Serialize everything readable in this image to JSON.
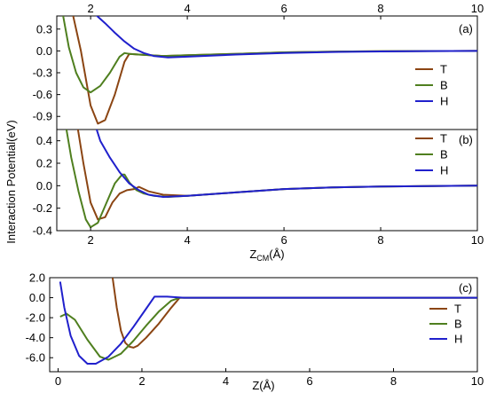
{
  "chart_data": [
    {
      "type": "line",
      "panel_label": "(a)",
      "top_ticks": [
        "2",
        "4",
        "6",
        "8",
        "10"
      ],
      "xlim": [
        1.3,
        10
      ],
      "ylim": [
        -1.08,
        0.48
      ],
      "y_ticks": [
        0.3,
        0.0,
        -0.3,
        -0.6,
        -0.9
      ],
      "y_tick_labels": [
        "0.3",
        "0.0",
        "-0.3",
        "-0.6",
        "-0.9"
      ],
      "legend": {
        "placement": "right"
      },
      "series": [
        {
          "name": "T",
          "color": "#8B4513",
          "x": [
            1.6,
            1.8,
            2.0,
            2.15,
            2.3,
            2.5,
            2.7,
            2.8,
            3.0,
            3.5,
            4.0,
            5.0,
            6.0,
            7.0,
            8.0,
            9.0,
            10.0
          ],
          "y": [
            0.6,
            0.0,
            -0.75,
            -1.0,
            -0.95,
            -0.6,
            -0.15,
            -0.04,
            -0.05,
            -0.07,
            -0.06,
            -0.04,
            -0.02,
            -0.01,
            -0.005,
            -0.002,
            0.0
          ]
        },
        {
          "name": "B",
          "color": "#4F7F1F",
          "x": [
            1.4,
            1.55,
            1.7,
            1.85,
            2.0,
            2.2,
            2.4,
            2.6,
            2.7,
            2.8,
            3.0,
            3.5,
            4.0,
            5.0,
            6.0,
            7.0,
            8.0,
            10.0
          ],
          "y": [
            0.6,
            0.05,
            -0.3,
            -0.5,
            -0.57,
            -0.48,
            -0.3,
            -0.08,
            -0.03,
            -0.04,
            -0.05,
            -0.07,
            -0.06,
            -0.04,
            -0.02,
            -0.01,
            -0.005,
            0.0
          ]
        },
        {
          "name": "H",
          "color": "#2020CC",
          "x": [
            2.1,
            2.3,
            2.5,
            2.7,
            2.9,
            3.1,
            3.3,
            3.6,
            4.0,
            5.0,
            6.0,
            7.0,
            8.0,
            9.0,
            10.0
          ],
          "y": [
            0.5,
            0.38,
            0.25,
            0.13,
            0.03,
            -0.03,
            -0.07,
            -0.09,
            -0.08,
            -0.05,
            -0.03,
            -0.015,
            -0.007,
            -0.003,
            0.0
          ]
        }
      ]
    },
    {
      "type": "line",
      "panel_label": "(b)",
      "xlim": [
        1.3,
        10
      ],
      "ylim": [
        -0.4,
        0.5
      ],
      "x_ticks": [
        "2",
        "4",
        "6",
        "8",
        "10"
      ],
      "y_ticks": [
        0.4,
        0.2,
        0.0,
        -0.2,
        -0.4
      ],
      "y_tick_labels": [
        "0.4",
        "0.2",
        "0.0",
        "-0.2",
        "-0.4"
      ],
      "xlabel_main": "Z",
      "xlabel_sub": "CM",
      "xlabel_unit": "(Å)",
      "legend": {
        "placement": "top-right"
      },
      "series": [
        {
          "name": "T",
          "color": "#8B4513",
          "x": [
            1.7,
            1.85,
            2.0,
            2.15,
            2.3,
            2.45,
            2.6,
            2.75,
            2.9,
            3.0,
            3.2,
            3.5,
            4.0,
            5.0,
            6.0,
            7.0,
            8.0,
            10.0
          ],
          "y": [
            0.6,
            0.2,
            -0.15,
            -0.3,
            -0.28,
            -0.15,
            -0.07,
            -0.04,
            -0.03,
            -0.01,
            -0.05,
            -0.08,
            -0.09,
            -0.06,
            -0.03,
            -0.015,
            -0.007,
            0.0
          ]
        },
        {
          "name": "B",
          "color": "#4F7F1F",
          "x": [
            1.5,
            1.6,
            1.75,
            1.9,
            2.0,
            2.15,
            2.3,
            2.5,
            2.65,
            2.7,
            2.8,
            2.95,
            3.1,
            3.3,
            3.6,
            4.0,
            5.0,
            6.0,
            7.0,
            8.0,
            10.0
          ],
          "y": [
            0.5,
            0.25,
            -0.05,
            -0.3,
            -0.37,
            -0.33,
            -0.18,
            0.02,
            0.1,
            0.1,
            0.03,
            -0.04,
            -0.07,
            -0.09,
            -0.1,
            -0.09,
            -0.06,
            -0.03,
            -0.015,
            -0.007,
            0.0
          ]
        },
        {
          "name": "H",
          "color": "#2020CC",
          "x": [
            2.05,
            2.2,
            2.4,
            2.6,
            2.8,
            3.0,
            3.2,
            3.5,
            4.0,
            5.0,
            6.0,
            7.0,
            8.0,
            9.0,
            10.0
          ],
          "y": [
            0.6,
            0.4,
            0.25,
            0.12,
            0.02,
            -0.04,
            -0.08,
            -0.1,
            -0.09,
            -0.06,
            -0.03,
            -0.015,
            -0.007,
            -0.003,
            0.0
          ]
        }
      ]
    },
    {
      "type": "line",
      "panel_label": "(c)",
      "xlim": [
        -0.2,
        10
      ],
      "ylim": [
        -7.4,
        2.0
      ],
      "x_ticks": [
        "0",
        "2",
        "4",
        "6",
        "8",
        "10"
      ],
      "y_ticks": [
        2.0,
        0.0,
        -2.0,
        -4.0,
        -6.0
      ],
      "y_tick_labels": [
        "2.0",
        "0.0",
        "-2.0",
        "-4.0",
        "-6.0"
      ],
      "xlabel": "Z(Å)",
      "legend": {
        "placement": "right"
      },
      "series": [
        {
          "name": "T",
          "color": "#8B4513",
          "x": [
            1.3,
            1.4,
            1.5,
            1.6,
            1.7,
            1.8,
            1.9,
            2.1,
            2.4,
            2.7,
            2.9,
            3.5,
            4.0,
            6.0,
            8.0,
            10.0
          ],
          "y": [
            2.0,
            -1.0,
            -3.3,
            -4.5,
            -4.9,
            -5.0,
            -4.8,
            -4.0,
            -2.6,
            -1.0,
            0.0,
            0.0,
            0.0,
            0.0,
            0.0,
            0.0
          ]
        },
        {
          "name": "B",
          "color": "#4F7F1F",
          "x": [
            0.05,
            0.2,
            0.4,
            0.7,
            1.0,
            1.2,
            1.5,
            1.8,
            2.1,
            2.4,
            2.7,
            2.9,
            3.5,
            4.0,
            6.0,
            8.0,
            10.0
          ],
          "y": [
            -1.9,
            -1.6,
            -2.2,
            -4.2,
            -5.9,
            -6.2,
            -5.6,
            -4.3,
            -2.8,
            -1.4,
            -0.3,
            0.0,
            0.0,
            0.0,
            0.0,
            0.0,
            0.0
          ]
        },
        {
          "name": "H",
          "color": "#2020CC",
          "x": [
            0.05,
            0.15,
            0.3,
            0.5,
            0.7,
            0.9,
            1.2,
            1.5,
            1.8,
            2.1,
            2.3,
            2.6,
            3.0,
            4.0,
            6.0,
            8.0,
            10.0
          ],
          "y": [
            1.6,
            -1.0,
            -3.8,
            -5.8,
            -6.6,
            -6.6,
            -5.9,
            -4.6,
            -2.9,
            -1.1,
            0.1,
            0.1,
            0.0,
            0.0,
            0.0,
            0.0,
            0.0
          ]
        }
      ]
    }
  ],
  "ylabel": "Interaction Potential(eV)"
}
